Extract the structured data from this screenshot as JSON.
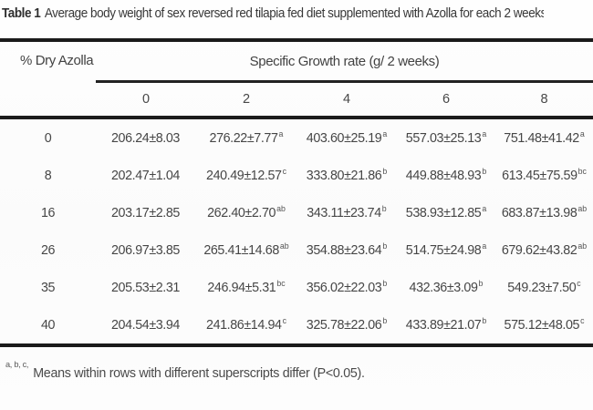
{
  "title": {
    "label": "Table 1",
    "text": "Average body weight of sex reversed red tilapia fed diet supplemented with Azolla for each 2 weeks"
  },
  "table": {
    "row_group_header": "% Dry Azolla",
    "span_header": "Specific Growth rate  (g/ 2 weeks)",
    "week_columns": [
      "0",
      "2",
      "4",
      "6",
      "8"
    ],
    "rows": [
      {
        "azolla": "0",
        "cells": [
          {
            "value": "206.24±8.03",
            "sup": ""
          },
          {
            "value": "276.22±7.77",
            "sup": "a"
          },
          {
            "value": "403.60±25.19",
            "sup": "a"
          },
          {
            "value": "557.03±25.13",
            "sup": "a"
          },
          {
            "value": "751.48±41.42",
            "sup": "a"
          }
        ]
      },
      {
        "azolla": "8",
        "cells": [
          {
            "value": "202.47±1.04",
            "sup": ""
          },
          {
            "value": "240.49±12.57",
            "sup": "c"
          },
          {
            "value": "333.80±21.86",
            "sup": "b"
          },
          {
            "value": "449.88±48.93",
            "sup": "b"
          },
          {
            "value": "613.45±75.59",
            "sup": "bc"
          }
        ]
      },
      {
        "azolla": "16",
        "cells": [
          {
            "value": "203.17±2.85",
            "sup": ""
          },
          {
            "value": "262.40±2.70",
            "sup": "ab"
          },
          {
            "value": "343.11±23.74",
            "sup": "b"
          },
          {
            "value": "538.93±12.85",
            "sup": "a"
          },
          {
            "value": "683.87±13.98",
            "sup": "ab"
          }
        ]
      },
      {
        "azolla": "26",
        "cells": [
          {
            "value": "206.97±3.85",
            "sup": ""
          },
          {
            "value": "265.41±14.68",
            "sup": "ab"
          },
          {
            "value": "354.88±23.64",
            "sup": "b"
          },
          {
            "value": "514.75±24.98",
            "sup": "a"
          },
          {
            "value": "679.62±43.82",
            "sup": "ab"
          }
        ]
      },
      {
        "azolla": "35",
        "cells": [
          {
            "value": "205.53±2.31",
            "sup": ""
          },
          {
            "value": "246.94±5.31",
            "sup": "bc"
          },
          {
            "value": "356.02±22.03",
            "sup": "b"
          },
          {
            "value": "432.36±3.09",
            "sup": "b"
          },
          {
            "value": "549.23±7.50",
            "sup": "c"
          }
        ]
      },
      {
        "azolla": "40",
        "cells": [
          {
            "value": "204.54±3.94",
            "sup": ""
          },
          {
            "value": "241.86±14.94",
            "sup": "c"
          },
          {
            "value": "325.78±22.06",
            "sup": "b"
          },
          {
            "value": "433.89±21.07",
            "sup": "b"
          },
          {
            "value": "575.12±48.05",
            "sup": "c"
          }
        ]
      }
    ]
  },
  "footnote": {
    "sup": "a, b, c,",
    "text": "Means within rows with different superscripts differ (P<0.05)."
  },
  "colors": {
    "text": "#464646",
    "rule": "#1b1b1b",
    "background": "#fdfdfd"
  }
}
